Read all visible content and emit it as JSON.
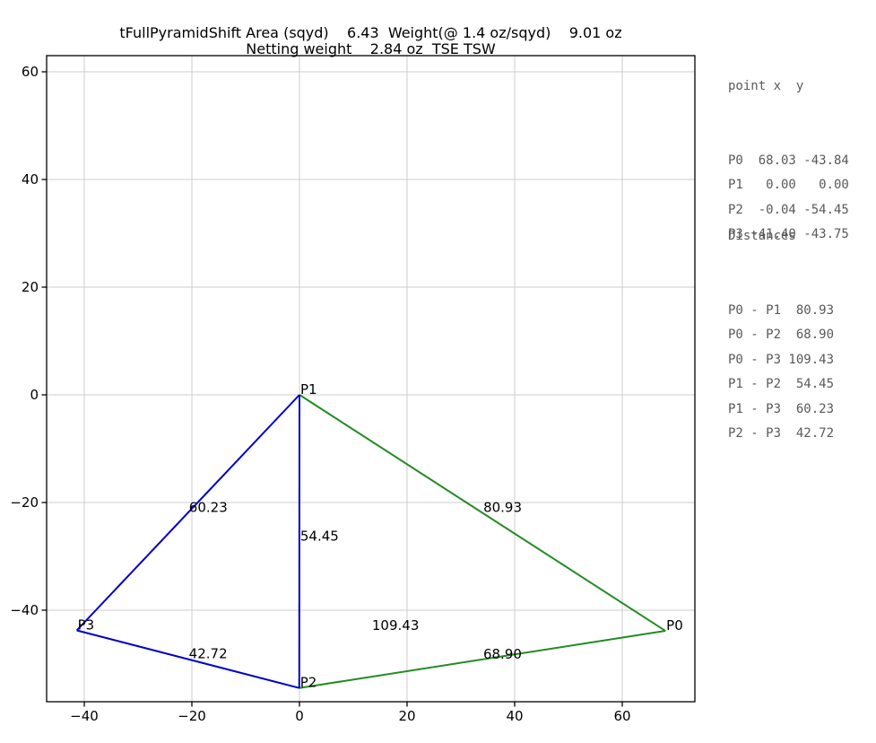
{
  "title": {
    "line1": "tFullPyramidShift Area (sqyd)    6.43  Weight(@ 1.4 oz/sqyd)    9.01 oz",
    "line2": "Netting weight    2.84 oz  TSE TSW"
  },
  "side_panel": {
    "points_header": "point x  y",
    "point_rows": [
      "P0  68.03 -43.84",
      "P1   0.00   0.00",
      "P2  -0.04 -54.45",
      "P3 -41.40 -43.75"
    ],
    "distances_header": "Distances",
    "distance_rows": [
      "P0 - P1  80.93",
      "P0 - P2  68.90",
      "P0 - P3 109.43",
      "P1 - P2  54.45",
      "P1 - P3  60.23",
      "P2 - P3  42.72"
    ]
  },
  "chart_data": {
    "type": "line",
    "title": "tFullPyramidShift Area (sqyd) 6.43 Weight(@ 1.4 oz/sqyd) 9.01 oz / Netting weight 2.84 oz TSE TSW",
    "points": [
      {
        "name": "P0",
        "x": 68.03,
        "y": -43.84
      },
      {
        "name": "P1",
        "x": 0.0,
        "y": 0.0
      },
      {
        "name": "P2",
        "x": -0.04,
        "y": -54.45
      },
      {
        "name": "P3",
        "x": -41.4,
        "y": -43.75
      }
    ],
    "edges": [
      {
        "a": "P0",
        "b": "P1",
        "color": "#228B22",
        "label": "80.93",
        "draw": true
      },
      {
        "a": "P0",
        "b": "P2",
        "color": "#228B22",
        "label": "68.90",
        "draw": true
      },
      {
        "a": "P0",
        "b": "P3",
        "color": null,
        "label": "109.43",
        "draw": false
      },
      {
        "a": "P1",
        "b": "P2",
        "color": "#0000CC",
        "label": "54.45",
        "draw": true
      },
      {
        "a": "P1",
        "b": "P3",
        "color": "#0000CC",
        "label": "60.23",
        "draw": true
      },
      {
        "a": "P2",
        "b": "P3",
        "color": "#0000CC",
        "label": "42.72",
        "draw": true
      }
    ],
    "xticks": [
      -40,
      -20,
      0,
      20,
      40,
      60
    ],
    "yticks": [
      -40,
      -20,
      0,
      20,
      40,
      60
    ],
    "xlim": [
      -47.0,
      73.5
    ],
    "ylim": [
      -57.0,
      63.0
    ],
    "grid": true,
    "line_width": 2,
    "colors": {
      "base_triangle": "#0000CC",
      "shifted_triangle": "#228B22",
      "grid": "#CCCCCC",
      "axis": "#000000",
      "labels": "#000000"
    }
  }
}
